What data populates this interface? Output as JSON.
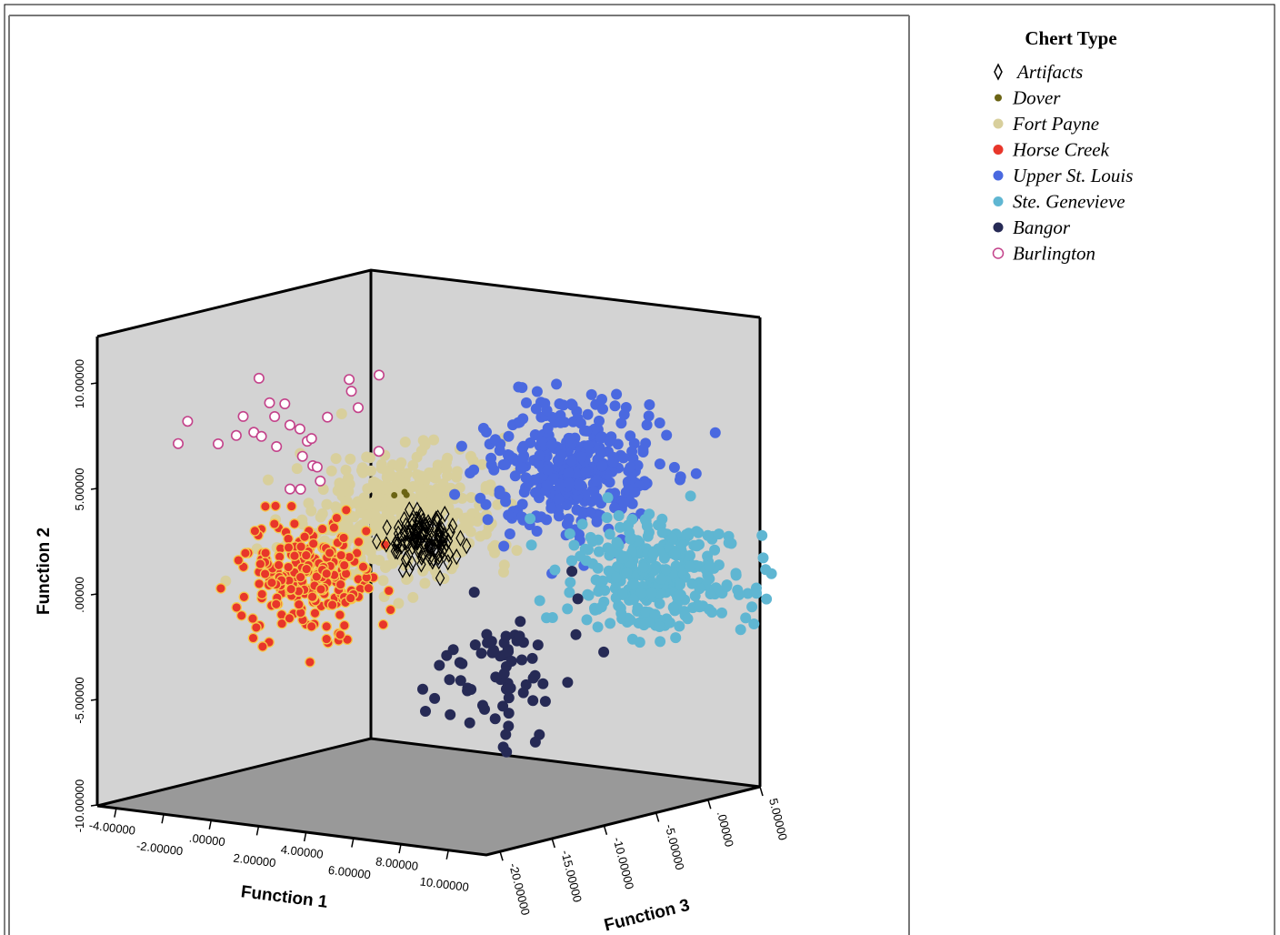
{
  "chart_data": {
    "type": "scatter",
    "subtype": "3d-scatter",
    "title": "",
    "legend": {
      "title": "Chert Type",
      "placement": "right",
      "entries": [
        {
          "name": "Artifacts",
          "marker": "diamond-open",
          "color": "#000000"
        },
        {
          "name": "Dover",
          "marker": "circle",
          "color": "#6b6414"
        },
        {
          "name": "Fort Payne",
          "marker": "circle",
          "color": "#d8cf9c"
        },
        {
          "name": "Horse Creek",
          "marker": "circle",
          "color": "#e8362a"
        },
        {
          "name": "Upper St. Louis",
          "marker": "circle",
          "color": "#4a69e0"
        },
        {
          "name": "Ste. Genevieve",
          "marker": "circle",
          "color": "#5fb6d2"
        },
        {
          "name": "Bangor",
          "marker": "circle",
          "color": "#262a55"
        },
        {
          "name": "Burlington",
          "marker": "circle-open",
          "color": "#c3428a"
        }
      ]
    },
    "axes": {
      "y": {
        "label": "Function 2",
        "range": [
          -10,
          12
        ],
        "ticks": [
          "-10.00000",
          "-5.00000",
          ".00000",
          "5.00000",
          "10.00000"
        ]
      },
      "x": {
        "label": "Function 1",
        "range": [
          -5,
          11
        ],
        "ticks": [
          "-4.00000",
          "-2.00000",
          ".00000",
          "2.00000",
          "4.00000",
          "6.00000",
          "8.00000",
          "10.00000"
        ]
      },
      "z": {
        "label": "Function 3",
        "range": [
          -22,
          -3
        ],
        "ticks": [
          "-20.00000",
          "-15.00000",
          "-10.00000",
          "-5.00000",
          ".00000",
          "5.00000"
        ]
      }
    },
    "clusters": [
      {
        "name": "Burlington",
        "count": 28,
        "approx_center": {
          "f1": -3.5,
          "f2": 6.0,
          "f3": -13
        }
      },
      {
        "name": "Fort Payne",
        "count": 420,
        "approx_center": {
          "f1": 0.5,
          "f2": 2.5,
          "f3": -12
        }
      },
      {
        "name": "Horse Creek",
        "count": 230,
        "approx_center": {
          "f1": -2.0,
          "f2": -0.5,
          "f3": -14
        }
      },
      {
        "name": "Artifacts",
        "count": 120,
        "approx_center": {
          "f1": 1.5,
          "f2": 1.5,
          "f3": -12
        }
      },
      {
        "name": "Dover",
        "count": 3,
        "approx_center": {
          "f1": 0.5,
          "f2": 3.5,
          "f3": -12
        }
      },
      {
        "name": "Upper St. Louis",
        "count": 360,
        "approx_center": {
          "f1": 5.5,
          "f2": 5.0,
          "f3": -9
        }
      },
      {
        "name": "Ste. Genevieve",
        "count": 320,
        "approx_center": {
          "f1": 7.5,
          "f2": 0.0,
          "f3": -7
        }
      },
      {
        "name": "Bangor",
        "count": 70,
        "approx_center": {
          "f1": 4.0,
          "f2": -4.5,
          "f3": -11
        }
      }
    ],
    "grid": false
  }
}
